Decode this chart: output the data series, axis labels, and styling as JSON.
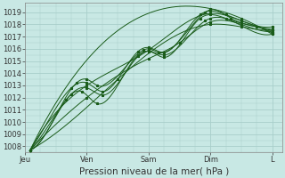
{
  "bg_color": "#c8e8e4",
  "grid_color": "#a8ceca",
  "line_color": "#1a5c1a",
  "marker_color": "#1a5c1a",
  "ylabel_values": [
    1008,
    1009,
    1010,
    1011,
    1012,
    1013,
    1014,
    1015,
    1016,
    1017,
    1018,
    1019
  ],
  "ylim": [
    1007.5,
    1019.8
  ],
  "xlabel": "Pression niveau de la mer( hPa )",
  "day_labels": [
    "Jeu",
    "Ven",
    "Sam",
    "Dim",
    "L"
  ],
  "day_positions": [
    0,
    24,
    48,
    72,
    96
  ],
  "xlim": [
    0,
    100
  ],
  "axis_fontsize": 7.5,
  "tick_fontsize": 6.0
}
